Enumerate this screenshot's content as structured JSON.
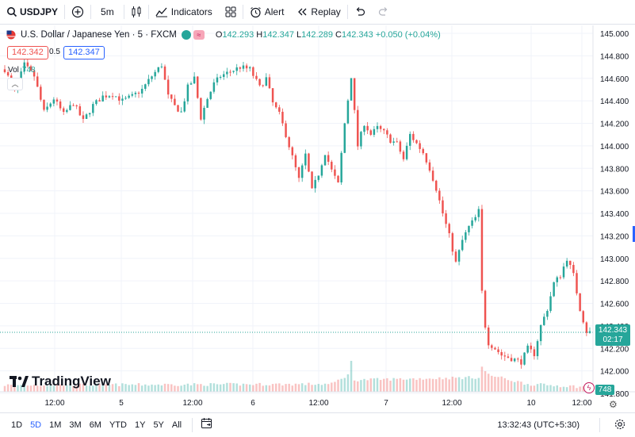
{
  "toolbar": {
    "symbol": "USDJPY",
    "interval": "5m",
    "indicators_label": "Indicators",
    "alert_label": "Alert",
    "replay_label": "Replay"
  },
  "legend": {
    "title": "U.S. Dollar / Japanese Yen · 5 · FXCM",
    "open_label": "O",
    "open": "142.293",
    "high_label": "H",
    "high": "142.347",
    "low_label": "L",
    "low": "142.289",
    "close_label": "C",
    "close": "142.343",
    "change": "+0.050 (+0.04%)",
    "bid": "142.342",
    "spread": "0.5",
    "ask": "142.347",
    "vol_label": "Vol",
    "vol_value": "748"
  },
  "price_axis": {
    "labels": [
      "145.000",
      "144.800",
      "144.600",
      "144.400",
      "144.200",
      "144.000",
      "143.800",
      "143.600",
      "143.400",
      "143.200",
      "143.000",
      "142.800",
      "142.600",
      "142.400",
      "142.200",
      "142.000",
      "141.800"
    ],
    "last_price": "142.343",
    "countdown": "02:17",
    "volume_badge": "748"
  },
  "time_axis": {
    "labels": [
      "12:00",
      "5",
      "12:00",
      "6",
      "12:00",
      "7",
      "12:00",
      "10",
      "12:00"
    ]
  },
  "branding": {
    "logo_text": "TradingView"
  },
  "bottombar": {
    "ranges": [
      "1D",
      "5D",
      "1M",
      "3M",
      "6M",
      "YTD",
      "1Y",
      "5Y",
      "All"
    ],
    "active_range": "5D",
    "timestamp": "13:32:43 (UTC+5:30)"
  },
  "colors": {
    "up": "#26a69a",
    "down": "#ef5350",
    "accent": "#2962ff"
  },
  "chart_data": {
    "type": "candlestick",
    "symbol": "USDJPY",
    "interval": "5m",
    "ylim": [
      141.8,
      145.0
    ],
    "price_anchors": [
      [
        0,
        144.68
      ],
      [
        3,
        144.48
      ],
      [
        6,
        144.72
      ],
      [
        9,
        144.62
      ],
      [
        12,
        144.3
      ],
      [
        15,
        144.42
      ],
      [
        18,
        144.28
      ],
      [
        21,
        144.38
      ],
      [
        24,
        144.22
      ],
      [
        27,
        144.36
      ],
      [
        30,
        144.44
      ],
      [
        33,
        144.46
      ],
      [
        36,
        144.4
      ],
      [
        39,
        144.44
      ],
      [
        42,
        144.5
      ],
      [
        45,
        144.62
      ],
      [
        48,
        144.72
      ],
      [
        50,
        144.44
      ],
      [
        52,
        144.35
      ],
      [
        54,
        144.3
      ],
      [
        56,
        144.52
      ],
      [
        58,
        144.6
      ],
      [
        60,
        144.25
      ],
      [
        62,
        144.42
      ],
      [
        64,
        144.55
      ],
      [
        66,
        144.62
      ],
      [
        69,
        144.66
      ],
      [
        72,
        144.7
      ],
      [
        75,
        144.68
      ],
      [
        78,
        144.52
      ],
      [
        80,
        144.6
      ],
      [
        82,
        144.38
      ],
      [
        84,
        144.28
      ],
      [
        86,
        144.1
      ],
      [
        88,
        143.9
      ],
      [
        90,
        143.7
      ],
      [
        92,
        143.92
      ],
      [
        94,
        143.6
      ],
      [
        96,
        143.75
      ],
      [
        98,
        143.94
      ],
      [
        100,
        143.78
      ],
      [
        102,
        143.66
      ],
      [
        104,
        144.2
      ],
      [
        106,
        144.62
      ],
      [
        107,
        144.3
      ],
      [
        108,
        144.0
      ],
      [
        110,
        144.2
      ],
      [
        112,
        144.1
      ],
      [
        114,
        144.16
      ],
      [
        116,
        144.12
      ],
      [
        118,
        144.05
      ],
      [
        120,
        144.02
      ],
      [
        122,
        143.88
      ],
      [
        124,
        144.1
      ],
      [
        126,
        144.02
      ],
      [
        128,
        143.94
      ],
      [
        130,
        143.8
      ],
      [
        132,
        143.62
      ],
      [
        134,
        143.4
      ],
      [
        136,
        143.2
      ],
      [
        138,
        142.96
      ],
      [
        140,
        143.16
      ],
      [
        142,
        143.28
      ],
      [
        144,
        143.36
      ],
      [
        145,
        143.42
      ],
      [
        146,
        142.7
      ],
      [
        147,
        142.4
      ],
      [
        148,
        142.25
      ],
      [
        150,
        142.2
      ],
      [
        152,
        142.14
      ],
      [
        154,
        142.12
      ],
      [
        156,
        142.1
      ],
      [
        158,
        142.08
      ],
      [
        160,
        142.2
      ],
      [
        162,
        142.15
      ],
      [
        164,
        142.4
      ],
      [
        166,
        142.55
      ],
      [
        168,
        142.78
      ],
      [
        170,
        142.85
      ],
      [
        172,
        143.0
      ],
      [
        174,
        142.85
      ],
      [
        176,
        142.55
      ],
      [
        178,
        142.35
      ],
      [
        179,
        142.343
      ]
    ],
    "volume_anchors": [
      [
        0,
        0.1
      ],
      [
        100,
        0.12
      ],
      [
        105,
        0.3
      ],
      [
        106,
        0.55
      ],
      [
        107,
        0.2
      ],
      [
        145,
        0.25
      ],
      [
        146,
        0.45
      ],
      [
        148,
        0.3
      ],
      [
        160,
        0.12
      ],
      [
        179,
        0.06
      ]
    ]
  }
}
